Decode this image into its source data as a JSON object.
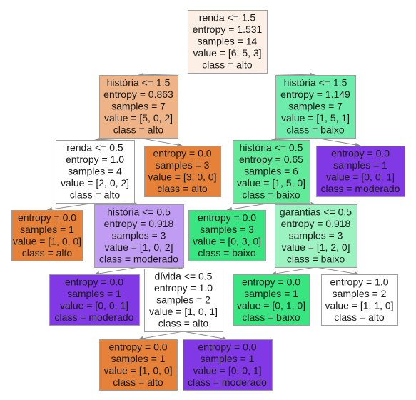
{
  "tree": {
    "nodes": [
      {
        "id": "n0",
        "lines": [
          "renda <= 1.5",
          "entropy = 1.531",
          "samples = 14",
          "value = [6, 5, 3]",
          "class = alto"
        ],
        "fill": "#fcefe6",
        "stroke": "#9d9d9d"
      },
      {
        "id": "n1",
        "lines": [
          "história <= 1.5",
          "entropy = 0.863",
          "samples = 7",
          "value = [5, 0, 2]",
          "class = alto"
        ],
        "fill": "#efb388",
        "stroke": "#9d9d9d"
      },
      {
        "id": "n2",
        "lines": [
          "história <= 1.5",
          "entropy = 1.149",
          "samples = 7",
          "value = [1, 5, 1]",
          "class = baixo"
        ],
        "fill": "#6eecac",
        "stroke": "#9d9d9d"
      },
      {
        "id": "n3",
        "lines": [
          "renda <= 0.5",
          "entropy = 1.0",
          "samples = 4",
          "value = [2, 0, 2]",
          "class = alto"
        ],
        "fill": "#ffffff",
        "stroke": "#9d9d9d"
      },
      {
        "id": "n4",
        "lines": [
          "entropy = 0.0",
          "samples = 3",
          "value = [3, 0, 0]",
          "class = alto"
        ],
        "fill": "#e58139",
        "stroke": "#9d9d9d"
      },
      {
        "id": "n5",
        "lines": [
          "história <= 0.5",
          "entropy = 0.65",
          "samples = 6",
          "value = [1, 5, 0]",
          "class = baixo"
        ],
        "fill": "#61ea9a",
        "stroke": "#9d9d9d"
      },
      {
        "id": "n6",
        "lines": [
          "entropy = 0.0",
          "samples = 1",
          "value = [0, 0, 1]",
          "class = moderado"
        ],
        "fill": "#8139e5",
        "stroke": "#9d9d9d"
      },
      {
        "id": "n7",
        "lines": [
          "entropy = 0.0",
          "samples = 1",
          "value = [1, 0, 0]",
          "class = alto"
        ],
        "fill": "#e58139",
        "stroke": "#9d9d9d"
      },
      {
        "id": "n8",
        "lines": [
          "história <= 0.5",
          "entropy = 0.918",
          "samples = 3",
          "value = [1, 0, 2]",
          "class = moderado"
        ],
        "fill": "#c09cf2",
        "stroke": "#9d9d9d"
      },
      {
        "id": "n9",
        "lines": [
          "entropy = 0.0",
          "samples = 3",
          "value = [0, 3, 0]",
          "class = baixo"
        ],
        "fill": "#39e581",
        "stroke": "#9d9d9d"
      },
      {
        "id": "n10",
        "lines": [
          "garantias <= 0.5",
          "entropy = 0.918",
          "samples = 3",
          "value = [1, 2, 0]",
          "class = baixo"
        ],
        "fill": "#9cf2c0",
        "stroke": "#9d9d9d"
      },
      {
        "id": "n11",
        "lines": [
          "entropy = 0.0",
          "samples = 1",
          "value = [0, 0, 1]",
          "class = moderado"
        ],
        "fill": "#8139e5",
        "stroke": "#9d9d9d"
      },
      {
        "id": "n12",
        "lines": [
          "dívida <= 0.5",
          "entropy = 1.0",
          "samples = 2",
          "value = [1, 0, 1]",
          "class = alto"
        ],
        "fill": "#ffffff",
        "stroke": "#9d9d9d"
      },
      {
        "id": "n13",
        "lines": [
          "entropy = 0.0",
          "samples = 1",
          "value = [0, 1, 0]",
          "class = baixo"
        ],
        "fill": "#39e581",
        "stroke": "#9d9d9d"
      },
      {
        "id": "n14",
        "lines": [
          "entropy = 1.0",
          "samples = 2",
          "value = [1, 1, 0]",
          "class = alto"
        ],
        "fill": "#ffffff",
        "stroke": "#9d9d9d"
      },
      {
        "id": "n15",
        "lines": [
          "entropy = 0.0",
          "samples = 1",
          "value = [1, 0, 0]",
          "class = alto"
        ],
        "fill": "#e58139",
        "stroke": "#9d9d9d"
      },
      {
        "id": "n16",
        "lines": [
          "entropy = 0.0",
          "samples = 1",
          "value = [0, 0, 1]",
          "class = moderado"
        ],
        "fill": "#8139e5",
        "stroke": "#9d9d9d"
      }
    ],
    "edges": [
      [
        "n0",
        "n1"
      ],
      [
        "n0",
        "n2"
      ],
      [
        "n1",
        "n3"
      ],
      [
        "n1",
        "n4"
      ],
      [
        "n2",
        "n5"
      ],
      [
        "n2",
        "n6"
      ],
      [
        "n3",
        "n7"
      ],
      [
        "n3",
        "n8"
      ],
      [
        "n5",
        "n9"
      ],
      [
        "n5",
        "n10"
      ],
      [
        "n8",
        "n11"
      ],
      [
        "n8",
        "n12"
      ],
      [
        "n10",
        "n13"
      ],
      [
        "n10",
        "n14"
      ],
      [
        "n12",
        "n15"
      ],
      [
        "n12",
        "n16"
      ]
    ]
  }
}
